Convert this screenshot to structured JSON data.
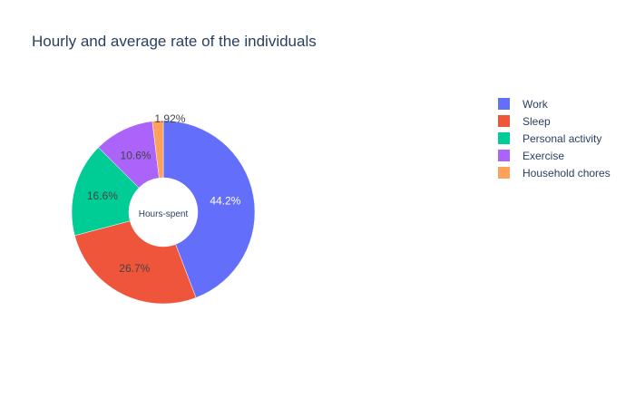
{
  "chart_data": {
    "type": "pie",
    "title": "Hourly and average rate of the individuals",
    "hole_label": "Hours-spent",
    "labels": [
      "Work",
      "Sleep",
      "Personal activity",
      "Exercise",
      "Household chores"
    ],
    "values": [
      44.2,
      26.7,
      16.6,
      10.6,
      1.92
    ],
    "value_labels": [
      "44.2%",
      "26.7%",
      "16.6%",
      "10.6%",
      "1.92%"
    ],
    "colors": [
      "#636efa",
      "#EF553B",
      "#00cc96",
      "#ab63fa",
      "#FFA15A"
    ],
    "label_colors": [
      "#ffffff",
      "#444444",
      "#444444",
      "#444444",
      "#444444"
    ],
    "label_outside": [
      false,
      false,
      false,
      false,
      true
    ],
    "legend": {
      "placement": "right",
      "entries": [
        "Work",
        "Sleep",
        "Personal activity",
        "Exercise",
        "Household chores"
      ]
    },
    "donut": true,
    "start": "top",
    "direction": "clockwise"
  }
}
